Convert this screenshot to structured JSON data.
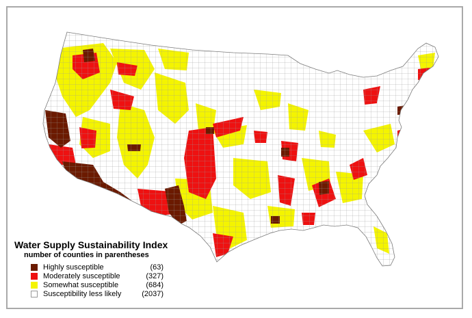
{
  "legend": {
    "title": "Water Supply Sustainability Index",
    "subtitle": "number of counties in parentheses",
    "items": [
      {
        "label": "Highly susceptible",
        "count": "(63)",
        "color": "#6b1a00"
      },
      {
        "label": "Moderately susceptible",
        "count": "(327)",
        "color": "#ee1111"
      },
      {
        "label": "Somewhat susceptible",
        "count": "(684)",
        "color": "#f4f400"
      },
      {
        "label": "Susceptibility less likely",
        "count": "(2037)",
        "color": "#ffffff"
      }
    ]
  },
  "colors": {
    "highly": "#6b1a00",
    "moderately": "#ee1111",
    "somewhat": "#f4f400",
    "less_likely": "#ffffff",
    "county_border": "#8c8c8c",
    "frame_border": "#a9a9a9"
  }
}
